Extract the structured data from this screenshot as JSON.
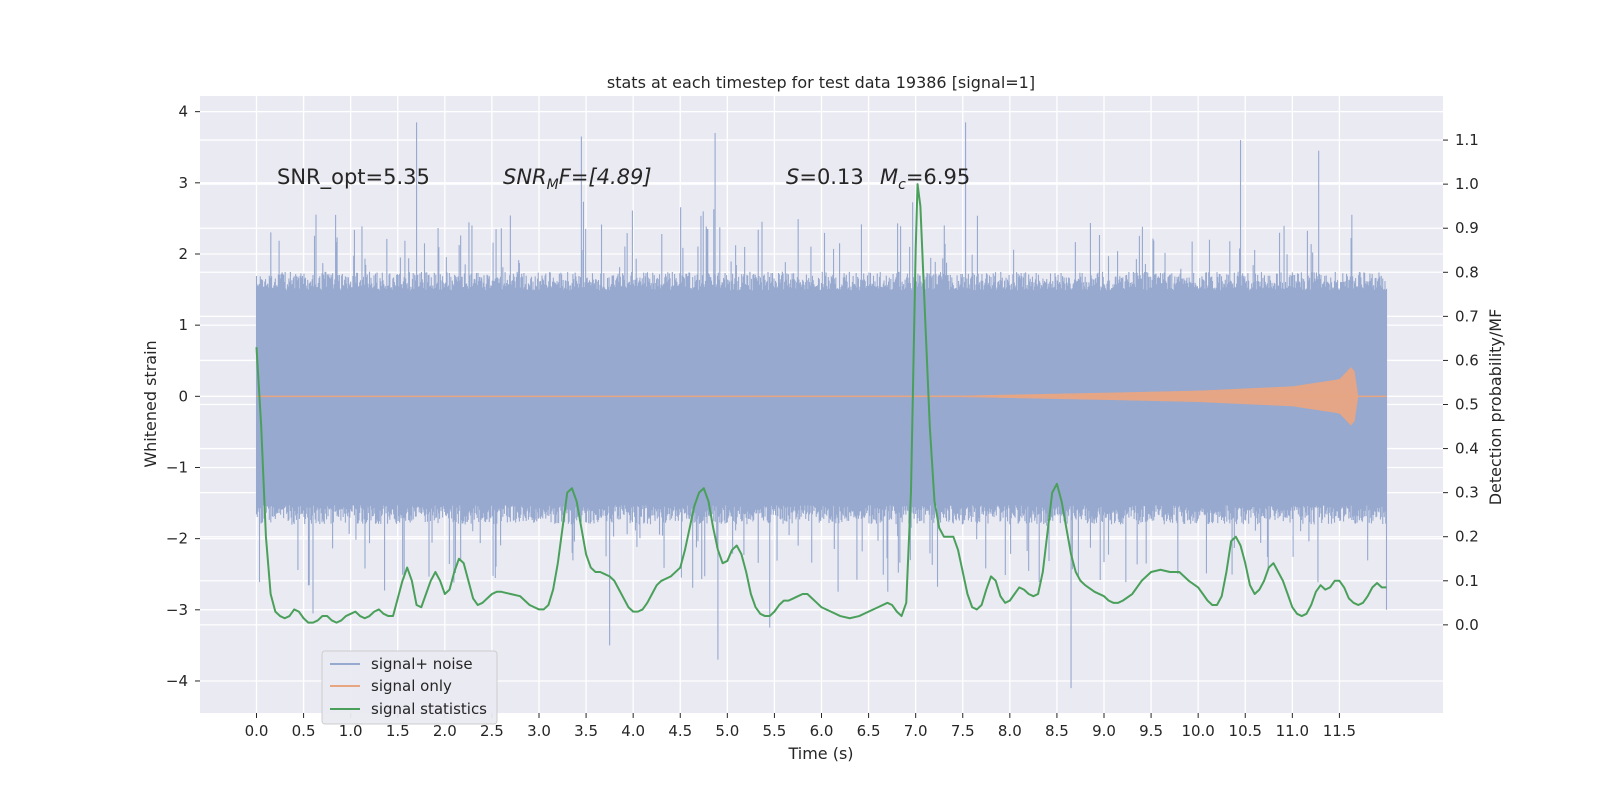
{
  "chart_data": {
    "type": "line",
    "title": "stats at each timestep for test data 19386 [signal=1]",
    "xlabel": "Time (s)",
    "ylabel_left": "Whitened strain",
    "ylabel_right": "Detection probability/MF",
    "xlim": [
      -0.6,
      12.6
    ],
    "ylim_left": [
      -4.45,
      4.22
    ],
    "ylim_right": [
      -0.2,
      1.2
    ],
    "x_ticks": [
      "0.0",
      "0.5",
      "1.0",
      "1.5",
      "2.0",
      "2.5",
      "3.0",
      "3.5",
      "4.0",
      "4.5",
      "5.0",
      "5.5",
      "6.0",
      "6.5",
      "7.0",
      "7.5",
      "8.0",
      "8.5",
      "9.0",
      "9.5",
      "10.0",
      "10.5",
      "11.0",
      "11.5"
    ],
    "y_ticks_left": [
      "−4",
      "−3",
      "−2",
      "−1",
      "0",
      "1",
      "2",
      "3",
      "4"
    ],
    "y_ticks_right": [
      "0.0",
      "0.1",
      "0.2",
      "0.3",
      "0.4",
      "0.5",
      "0.6",
      "0.7",
      "0.8",
      "0.9",
      "1.0",
      "1.1"
    ],
    "grid": true,
    "legend_position": "lower-left",
    "annotations": {
      "snr_opt": "SNR_opt=5.35",
      "snr_mf_label": "SNR",
      "snr_mf_sub": "M",
      "snr_mf_rest": "F=[4.89]",
      "s_label": "S",
      "s_value": "=0.13",
      "mc_label": "M",
      "mc_sub": "c",
      "mc_value": "=6.95"
    },
    "series": [
      {
        "name": "signal+ noise",
        "color": "#97a9cf",
        "axis": "left",
        "x_range": [
          0.0,
          12.0
        ],
        "band_limits": [
          -1.8,
          1.75
        ],
        "spike_extremes_upper": [
          [
            1.7,
            3.85
          ],
          [
            3.45,
            3.65
          ],
          [
            4.87,
            3.7
          ],
          [
            7.53,
            3.85
          ],
          [
            10.45,
            3.6
          ],
          [
            11.28,
            3.45
          ]
        ],
        "spike_extremes_lower": [
          [
            0.6,
            -3.05
          ],
          [
            3.75,
            -3.5
          ],
          [
            4.9,
            -3.7
          ],
          [
            5.45,
            -3.25
          ],
          [
            8.65,
            -4.1
          ],
          [
            12.0,
            -3.0
          ]
        ]
      },
      {
        "name": "signal only",
        "color": "#e8a582",
        "axis": "left",
        "envelope": {
          "x": [
            0.0,
            7.5,
            9.0,
            10.0,
            11.0,
            11.5,
            11.65,
            11.7
          ],
          "amp": [
            0.0,
            0.01,
            0.05,
            0.08,
            0.14,
            0.24,
            0.45,
            0.0
          ]
        }
      },
      {
        "name": "signal statistics",
        "color": "#4aa05b",
        "axis": "right",
        "points": [
          [
            0.0,
            0.63
          ],
          [
            0.05,
            0.45
          ],
          [
            0.1,
            0.2
          ],
          [
            0.15,
            0.07
          ],
          [
            0.2,
            0.03
          ],
          [
            0.25,
            0.02
          ],
          [
            0.3,
            0.015
          ],
          [
            0.35,
            0.02
          ],
          [
            0.4,
            0.035
          ],
          [
            0.45,
            0.03
          ],
          [
            0.5,
            0.015
          ],
          [
            0.55,
            0.005
          ],
          [
            0.6,
            0.005
          ],
          [
            0.65,
            0.01
          ],
          [
            0.7,
            0.02
          ],
          [
            0.75,
            0.02
          ],
          [
            0.8,
            0.01
          ],
          [
            0.85,
            0.005
          ],
          [
            0.9,
            0.01
          ],
          [
            0.95,
            0.02
          ],
          [
            1.0,
            0.025
          ],
          [
            1.05,
            0.03
          ],
          [
            1.1,
            0.02
          ],
          [
            1.15,
            0.015
          ],
          [
            1.2,
            0.02
          ],
          [
            1.25,
            0.03
          ],
          [
            1.3,
            0.035
          ],
          [
            1.35,
            0.025
          ],
          [
            1.4,
            0.02
          ],
          [
            1.45,
            0.02
          ],
          [
            1.5,
            0.06
          ],
          [
            1.55,
            0.1
          ],
          [
            1.6,
            0.13
          ],
          [
            1.65,
            0.1
          ],
          [
            1.7,
            0.045
          ],
          [
            1.75,
            0.04
          ],
          [
            1.8,
            0.07
          ],
          [
            1.85,
            0.1
          ],
          [
            1.9,
            0.12
          ],
          [
            1.95,
            0.1
          ],
          [
            2.0,
            0.07
          ],
          [
            2.05,
            0.08
          ],
          [
            2.1,
            0.12
          ],
          [
            2.15,
            0.15
          ],
          [
            2.2,
            0.14
          ],
          [
            2.25,
            0.1
          ],
          [
            2.3,
            0.06
          ],
          [
            2.35,
            0.045
          ],
          [
            2.4,
            0.05
          ],
          [
            2.45,
            0.06
          ],
          [
            2.5,
            0.07
          ],
          [
            2.55,
            0.075
          ],
          [
            2.6,
            0.075
          ],
          [
            2.7,
            0.07
          ],
          [
            2.8,
            0.065
          ],
          [
            2.9,
            0.045
          ],
          [
            3.0,
            0.035
          ],
          [
            3.05,
            0.035
          ],
          [
            3.1,
            0.045
          ],
          [
            3.15,
            0.08
          ],
          [
            3.2,
            0.14
          ],
          [
            3.25,
            0.22
          ],
          [
            3.3,
            0.3
          ],
          [
            3.35,
            0.31
          ],
          [
            3.4,
            0.28
          ],
          [
            3.45,
            0.22
          ],
          [
            3.5,
            0.16
          ],
          [
            3.55,
            0.13
          ],
          [
            3.6,
            0.12
          ],
          [
            3.65,
            0.12
          ],
          [
            3.7,
            0.115
          ],
          [
            3.75,
            0.11
          ],
          [
            3.8,
            0.1
          ],
          [
            3.85,
            0.08
          ],
          [
            3.9,
            0.06
          ],
          [
            3.95,
            0.04
          ],
          [
            4.0,
            0.03
          ],
          [
            4.05,
            0.03
          ],
          [
            4.1,
            0.035
          ],
          [
            4.15,
            0.05
          ],
          [
            4.2,
            0.07
          ],
          [
            4.25,
            0.09
          ],
          [
            4.3,
            0.1
          ],
          [
            4.4,
            0.11
          ],
          [
            4.5,
            0.13
          ],
          [
            4.55,
            0.17
          ],
          [
            4.6,
            0.22
          ],
          [
            4.65,
            0.27
          ],
          [
            4.7,
            0.3
          ],
          [
            4.75,
            0.31
          ],
          [
            4.8,
            0.28
          ],
          [
            4.85,
            0.22
          ],
          [
            4.9,
            0.17
          ],
          [
            4.95,
            0.14
          ],
          [
            5.0,
            0.145
          ],
          [
            5.05,
            0.17
          ],
          [
            5.1,
            0.18
          ],
          [
            5.15,
            0.16
          ],
          [
            5.2,
            0.12
          ],
          [
            5.25,
            0.07
          ],
          [
            5.3,
            0.04
          ],
          [
            5.35,
            0.025
          ],
          [
            5.4,
            0.02
          ],
          [
            5.45,
            0.02
          ],
          [
            5.5,
            0.03
          ],
          [
            5.55,
            0.045
          ],
          [
            5.6,
            0.055
          ],
          [
            5.65,
            0.055
          ],
          [
            5.7,
            0.06
          ],
          [
            5.75,
            0.065
          ],
          [
            5.8,
            0.07
          ],
          [
            5.85,
            0.07
          ],
          [
            5.9,
            0.06
          ],
          [
            5.95,
            0.05
          ],
          [
            6.0,
            0.04
          ],
          [
            6.1,
            0.03
          ],
          [
            6.2,
            0.02
          ],
          [
            6.3,
            0.015
          ],
          [
            6.4,
            0.02
          ],
          [
            6.5,
            0.03
          ],
          [
            6.6,
            0.04
          ],
          [
            6.7,
            0.05
          ],
          [
            6.75,
            0.045
          ],
          [
            6.8,
            0.03
          ],
          [
            6.85,
            0.02
          ],
          [
            6.9,
            0.05
          ],
          [
            6.95,
            0.3
          ],
          [
            7.0,
            0.85
          ],
          [
            7.02,
            1.0
          ],
          [
            7.05,
            0.95
          ],
          [
            7.1,
            0.7
          ],
          [
            7.15,
            0.45
          ],
          [
            7.2,
            0.28
          ],
          [
            7.25,
            0.22
          ],
          [
            7.3,
            0.2
          ],
          [
            7.35,
            0.2
          ],
          [
            7.4,
            0.2
          ],
          [
            7.45,
            0.17
          ],
          [
            7.5,
            0.12
          ],
          [
            7.55,
            0.07
          ],
          [
            7.6,
            0.04
          ],
          [
            7.65,
            0.035
          ],
          [
            7.7,
            0.045
          ],
          [
            7.75,
            0.08
          ],
          [
            7.8,
            0.11
          ],
          [
            7.85,
            0.1
          ],
          [
            7.9,
            0.065
          ],
          [
            7.95,
            0.05
          ],
          [
            8.0,
            0.055
          ],
          [
            8.05,
            0.07
          ],
          [
            8.1,
            0.085
          ],
          [
            8.15,
            0.08
          ],
          [
            8.2,
            0.07
          ],
          [
            8.25,
            0.065
          ],
          [
            8.3,
            0.07
          ],
          [
            8.35,
            0.12
          ],
          [
            8.4,
            0.21
          ],
          [
            8.45,
            0.3
          ],
          [
            8.5,
            0.32
          ],
          [
            8.55,
            0.28
          ],
          [
            8.6,
            0.22
          ],
          [
            8.65,
            0.16
          ],
          [
            8.7,
            0.12
          ],
          [
            8.75,
            0.1
          ],
          [
            8.8,
            0.09
          ],
          [
            8.9,
            0.075
          ],
          [
            9.0,
            0.065
          ],
          [
            9.05,
            0.055
          ],
          [
            9.1,
            0.05
          ],
          [
            9.15,
            0.05
          ],
          [
            9.2,
            0.055
          ],
          [
            9.3,
            0.07
          ],
          [
            9.4,
            0.1
          ],
          [
            9.5,
            0.12
          ],
          [
            9.6,
            0.125
          ],
          [
            9.7,
            0.12
          ],
          [
            9.8,
            0.12
          ],
          [
            9.9,
            0.1
          ],
          [
            10.0,
            0.085
          ],
          [
            10.05,
            0.07
          ],
          [
            10.1,
            0.055
          ],
          [
            10.15,
            0.045
          ],
          [
            10.2,
            0.045
          ],
          [
            10.25,
            0.065
          ],
          [
            10.3,
            0.12
          ],
          [
            10.35,
            0.19
          ],
          [
            10.4,
            0.2
          ],
          [
            10.45,
            0.18
          ],
          [
            10.5,
            0.14
          ],
          [
            10.55,
            0.09
          ],
          [
            10.6,
            0.07
          ],
          [
            10.65,
            0.08
          ],
          [
            10.7,
            0.1
          ],
          [
            10.75,
            0.13
          ],
          [
            10.8,
            0.14
          ],
          [
            10.85,
            0.12
          ],
          [
            10.9,
            0.1
          ],
          [
            10.95,
            0.07
          ],
          [
            11.0,
            0.04
          ],
          [
            11.05,
            0.025
          ],
          [
            11.1,
            0.02
          ],
          [
            11.15,
            0.025
          ],
          [
            11.2,
            0.045
          ],
          [
            11.25,
            0.075
          ],
          [
            11.3,
            0.09
          ],
          [
            11.35,
            0.08
          ],
          [
            11.4,
            0.085
          ],
          [
            11.45,
            0.1
          ],
          [
            11.5,
            0.1
          ],
          [
            11.55,
            0.085
          ],
          [
            11.6,
            0.06
          ],
          [
            11.65,
            0.05
          ],
          [
            11.7,
            0.045
          ],
          [
            11.75,
            0.05
          ],
          [
            11.8,
            0.065
          ],
          [
            11.85,
            0.085
          ],
          [
            11.9,
            0.095
          ],
          [
            11.95,
            0.085
          ],
          [
            12.0,
            0.085
          ]
        ]
      }
    ]
  }
}
